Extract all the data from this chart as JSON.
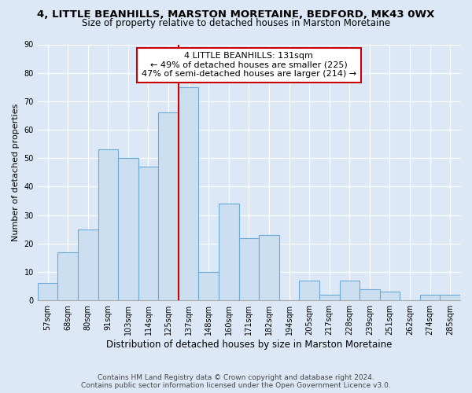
{
  "title": "4, LITTLE BEANHILLS, MARSTON MORETAINE, BEDFORD, MK43 0WX",
  "subtitle": "Size of property relative to detached houses in Marston Moretaine",
  "xlabel": "Distribution of detached houses by size in Marston Moretaine",
  "ylabel": "Number of detached properties",
  "bar_labels": [
    "57sqm",
    "68sqm",
    "80sqm",
    "91sqm",
    "103sqm",
    "114sqm",
    "125sqm",
    "137sqm",
    "148sqm",
    "160sqm",
    "171sqm",
    "182sqm",
    "194sqm",
    "205sqm",
    "217sqm",
    "228sqm",
    "239sqm",
    "251sqm",
    "262sqm",
    "274sqm",
    "285sqm"
  ],
  "bar_values": [
    6,
    17,
    25,
    53,
    50,
    47,
    66,
    75,
    10,
    34,
    22,
    23,
    0,
    7,
    2,
    7,
    4,
    3,
    0,
    2,
    2
  ],
  "bar_color": "#ccdff0",
  "bar_edge_color": "#6aaad4",
  "annotation_line_color": "#cc0000",
  "annotation_box_text_line1": "4 LITTLE BEANHILLS: 131sqm",
  "annotation_box_text_line2": "← 49% of detached houses are smaller (225)",
  "annotation_box_text_line3": "47% of semi-detached houses are larger (214) →",
  "annotation_box_color": "#ffffff",
  "annotation_box_edge_color": "#cc0000",
  "ylim": [
    0,
    90
  ],
  "yticks": [
    0,
    10,
    20,
    30,
    40,
    50,
    60,
    70,
    80,
    90
  ],
  "footer_line1": "Contains HM Land Registry data © Crown copyright and database right 2024.",
  "footer_line2": "Contains public sector information licensed under the Open Government Licence v3.0.",
  "bg_color": "#dce8f5",
  "plot_bg_color": "#dce8f5",
  "grid_color": "#ffffff",
  "title_fontsize": 9.5,
  "subtitle_fontsize": 8.5,
  "xlabel_fontsize": 8.5,
  "ylabel_fontsize": 8,
  "tick_fontsize": 7,
  "annotation_fontsize": 8,
  "footer_fontsize": 6.5,
  "red_line_x": 6.5
}
